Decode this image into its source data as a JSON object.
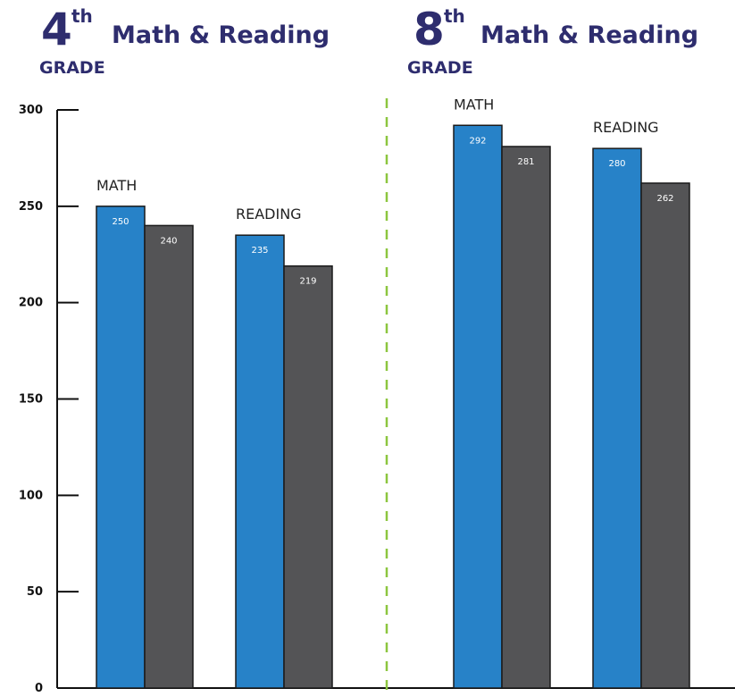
{
  "headings": {
    "left": {
      "number": "4",
      "suffix": "th",
      "subtitle": "Math & Reading",
      "grade": "GRADE"
    },
    "right": {
      "number": "8",
      "suffix": "th",
      "subtitle": "Math & Reading",
      "grade": "GRADE"
    }
  },
  "colors": {
    "heading": "#2e2d6e",
    "blue": "#2782c8",
    "gray": "#545456",
    "divider": "#8cc63f"
  },
  "chart_data": {
    "type": "bar",
    "ylim": [
      0,
      300
    ],
    "yticks": [
      0,
      50,
      100,
      150,
      200,
      250,
      300
    ],
    "groups": [
      {
        "label": "MATH",
        "grade": "4th",
        "values": [
          250,
          240
        ]
      },
      {
        "label": "READING",
        "grade": "4th",
        "values": [
          235,
          219
        ]
      },
      {
        "label": "MATH",
        "grade": "8th",
        "values": [
          292,
          281
        ]
      },
      {
        "label": "READING",
        "grade": "8th",
        "values": [
          280,
          262
        ]
      }
    ],
    "series_colors": [
      "#2782c8",
      "#545456"
    ]
  }
}
